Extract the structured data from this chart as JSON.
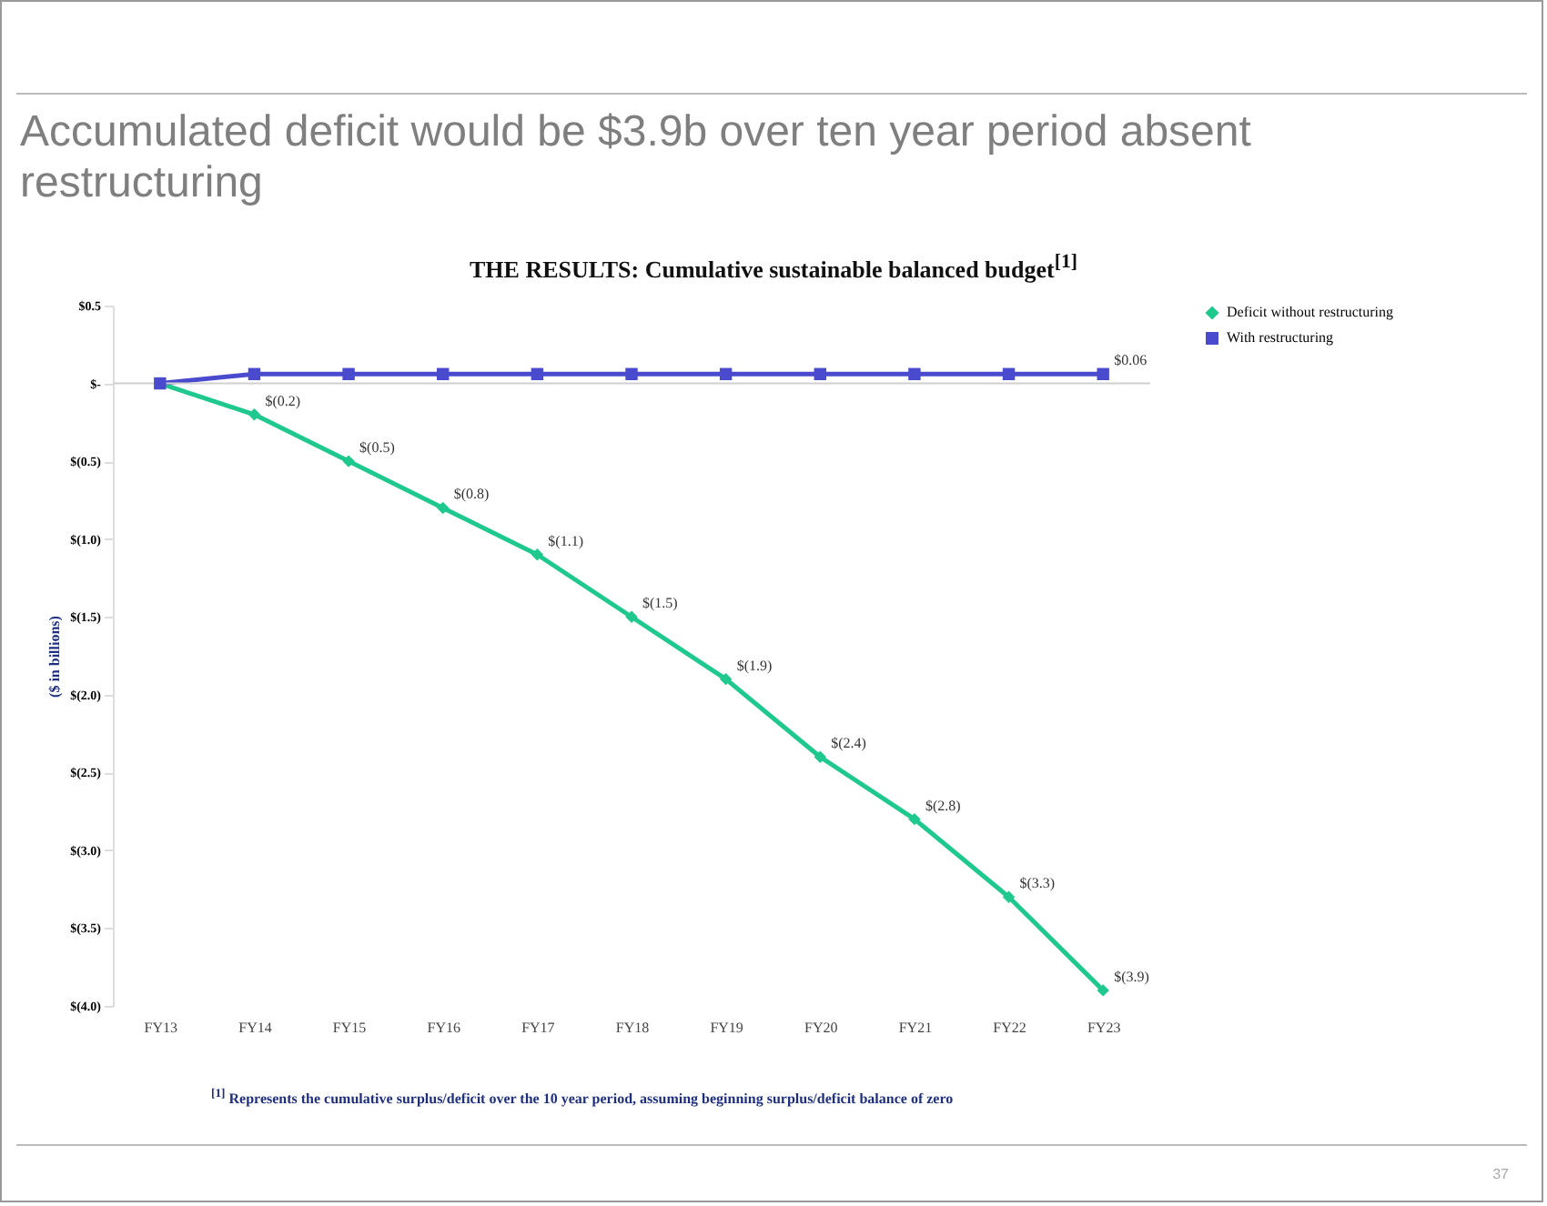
{
  "chart_data": {
    "type": "line",
    "title": "Accumulated deficit would be $3.9b over ten year period absent restructuring",
    "subtitle": "THE RESULTS:  Cumulative sustainable balanced budget$^{[1]}$",
    "ylabel": "($ in billions)",
    "categories": [
      "FY13",
      "FY14",
      "FY15",
      "FY16",
      "FY17",
      "FY18",
      "FY19",
      "FY20",
      "FY21",
      "FY22",
      "FY23"
    ],
    "series": [
      {
        "name": "Deficit without restructuring",
        "color": "#1fc98e",
        "marker": "diamond",
        "values": [
          0,
          -0.2,
          -0.5,
          -0.8,
          -1.1,
          -1.5,
          -1.9,
          -2.4,
          -2.8,
          -3.3,
          -3.9
        ],
        "value_labels": [
          null,
          "$(0.2)",
          "$(0.5)",
          "$(0.8)",
          "$(1.1)",
          "$(1.5)",
          "$(1.9)",
          "$(2.4)",
          "$(2.8)",
          "$(3.3)",
          "$(3.9)"
        ]
      },
      {
        "name": "With restructuring",
        "color": "#4a4acf",
        "marker": "square",
        "values": [
          0,
          0.06,
          0.06,
          0.06,
          0.06,
          0.06,
          0.06,
          0.06,
          0.06,
          0.06,
          0.06
        ],
        "value_labels": [
          null,
          null,
          null,
          null,
          null,
          null,
          null,
          null,
          null,
          null,
          "$0.06"
        ]
      }
    ],
    "ylim": [
      -4,
      0.5
    ],
    "yticks": [
      {
        "value": 0.5,
        "label": "$0.5"
      },
      {
        "value": 0,
        "label": "$-"
      },
      {
        "value": -0.5,
        "label": "$(0.5)"
      },
      {
        "value": -1,
        "label": "$(1.0)"
      },
      {
        "value": -1.5,
        "label": "$(1.5)"
      },
      {
        "value": -2,
        "label": "$(2.0)"
      },
      {
        "value": -2.5,
        "label": "$(2.5)"
      },
      {
        "value": -3,
        "label": "$(3.0)"
      },
      {
        "value": -3.5,
        "label": "$(3.5)"
      },
      {
        "value": -4,
        "label": "$(4.0)"
      }
    ],
    "ref_lines": [
      {
        "axis": "y",
        "value": 0,
        "label": null,
        "color": "#d0d0d0"
      }
    ],
    "legend": "right",
    "annotations": [
      "$^{[1]}$ Represents the cumulative surplus/deficit over the 10 year period, assuming  beginning surplus/deficit balance of zero",
      "37"
    ]
  }
}
